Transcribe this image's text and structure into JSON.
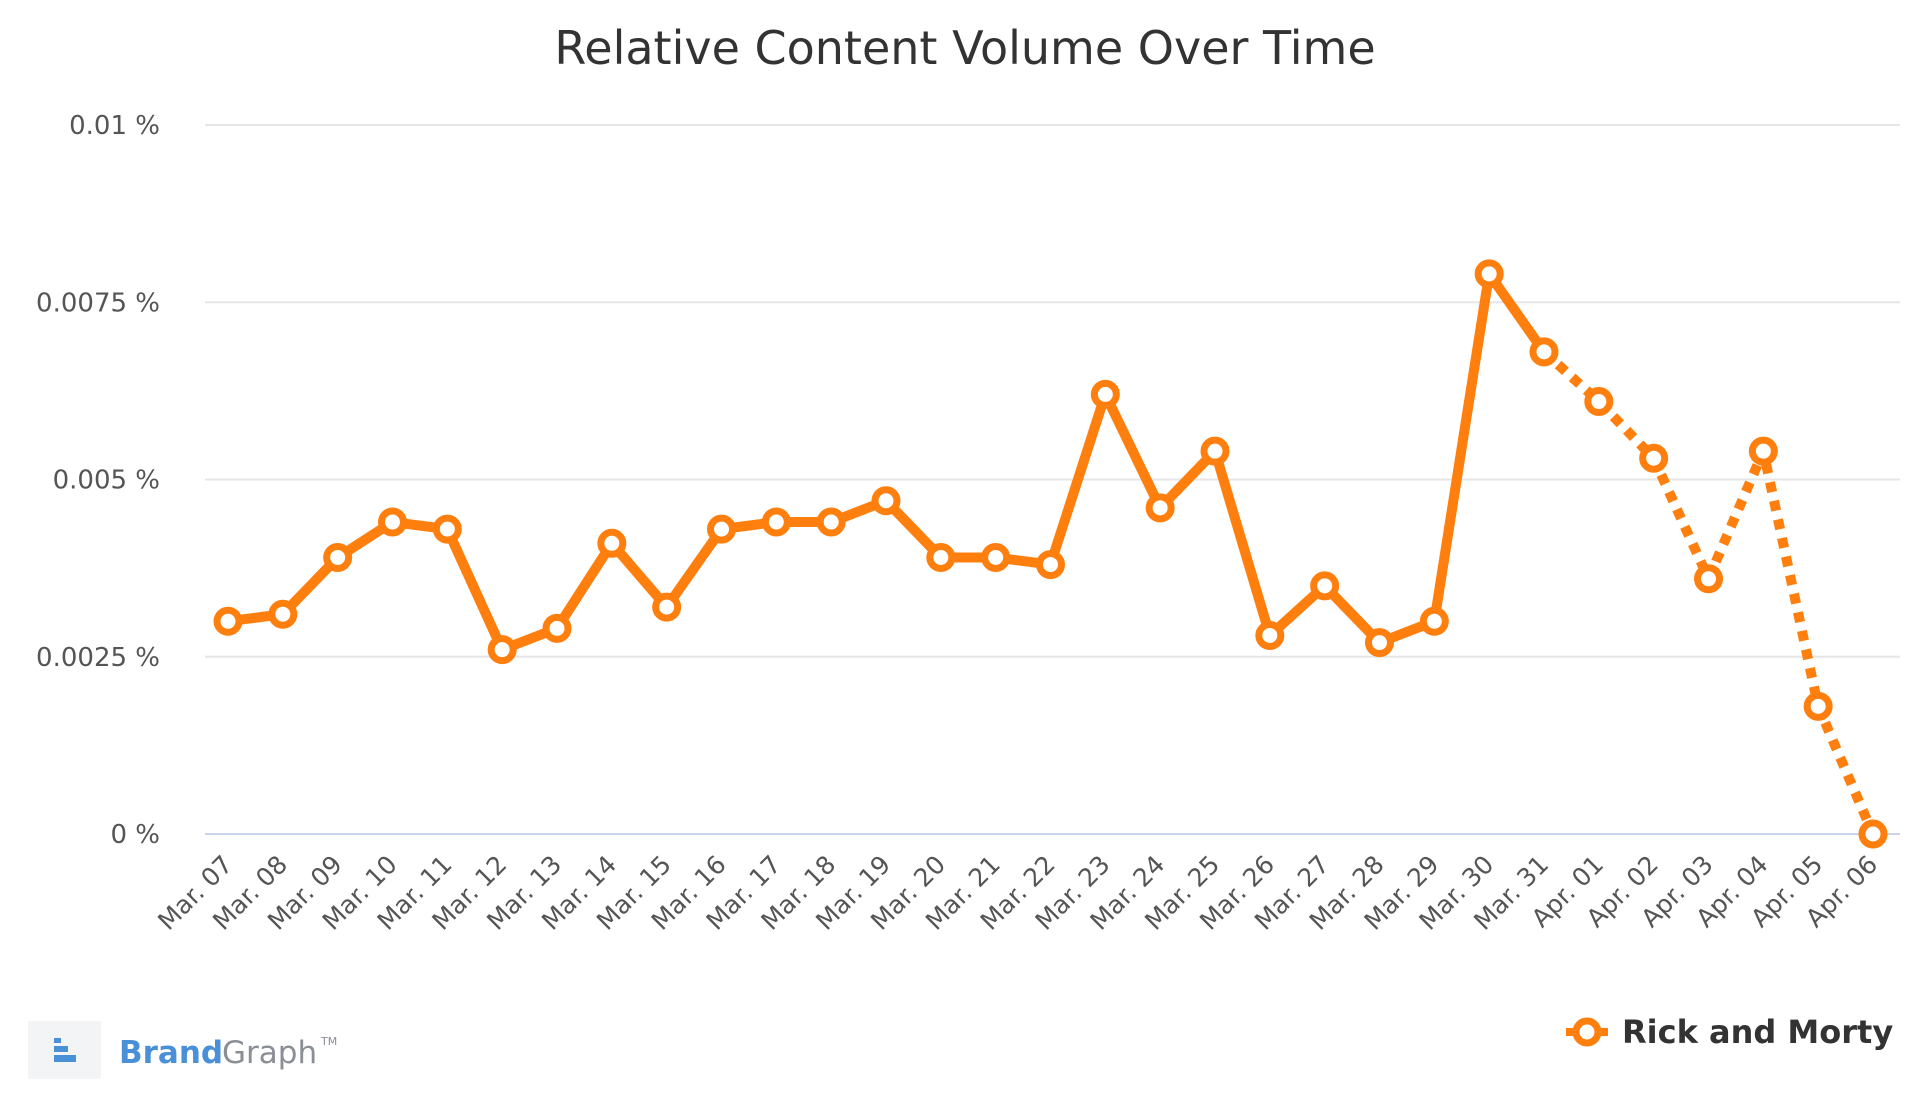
{
  "chart_data": {
    "type": "line",
    "title": "Relative Content Volume Over Time",
    "xlabel": "",
    "ylabel": "",
    "ylim": [
      0,
      0.01
    ],
    "yticks": [
      {
        "value": 0,
        "label": "0 %"
      },
      {
        "value": 0.0025,
        "label": "0.0025 %"
      },
      {
        "value": 0.005,
        "label": "0.005 %"
      },
      {
        "value": 0.0075,
        "label": "0.0075 %"
      },
      {
        "value": 0.01,
        "label": "0.01 %"
      }
    ],
    "categories": [
      "Mar. 07",
      "Mar. 08",
      "Mar. 09",
      "Mar. 10",
      "Mar. 11",
      "Mar. 12",
      "Mar. 13",
      "Mar. 14",
      "Mar. 15",
      "Mar. 16",
      "Mar. 17",
      "Mar. 18",
      "Mar. 19",
      "Mar. 20",
      "Mar. 21",
      "Mar. 22",
      "Mar. 23",
      "Mar. 24",
      "Mar. 25",
      "Mar. 26",
      "Mar. 27",
      "Mar. 28",
      "Mar. 29",
      "Mar. 30",
      "Mar. 31",
      "Apr. 01",
      "Apr. 02",
      "Apr. 03",
      "Apr. 04",
      "Apr. 05",
      "Apr. 06"
    ],
    "series": [
      {
        "name": "Rick and Morty",
        "color": "#ff7f0e",
        "values": [
          0.003,
          0.0031,
          0.0039,
          0.0044,
          0.0043,
          0.0026,
          0.0029,
          0.0041,
          0.0032,
          0.0043,
          0.0044,
          0.0044,
          0.0047,
          0.0039,
          0.0039,
          0.0038,
          0.0062,
          0.0046,
          0.0054,
          0.0028,
          0.0035,
          0.0027,
          0.003,
          0.0079,
          0.0068,
          0.0061,
          0.0053,
          0.0036,
          0.0054,
          0.0018,
          0.0
        ],
        "solid_until_index": 24
      }
    ],
    "grid": true,
    "legend": "bottom-right"
  },
  "brand": {
    "name_part1": "Brand",
    "name_part2": "Graph",
    "tm": "TM",
    "logo_icon": "brandgraph-logo-icon"
  }
}
